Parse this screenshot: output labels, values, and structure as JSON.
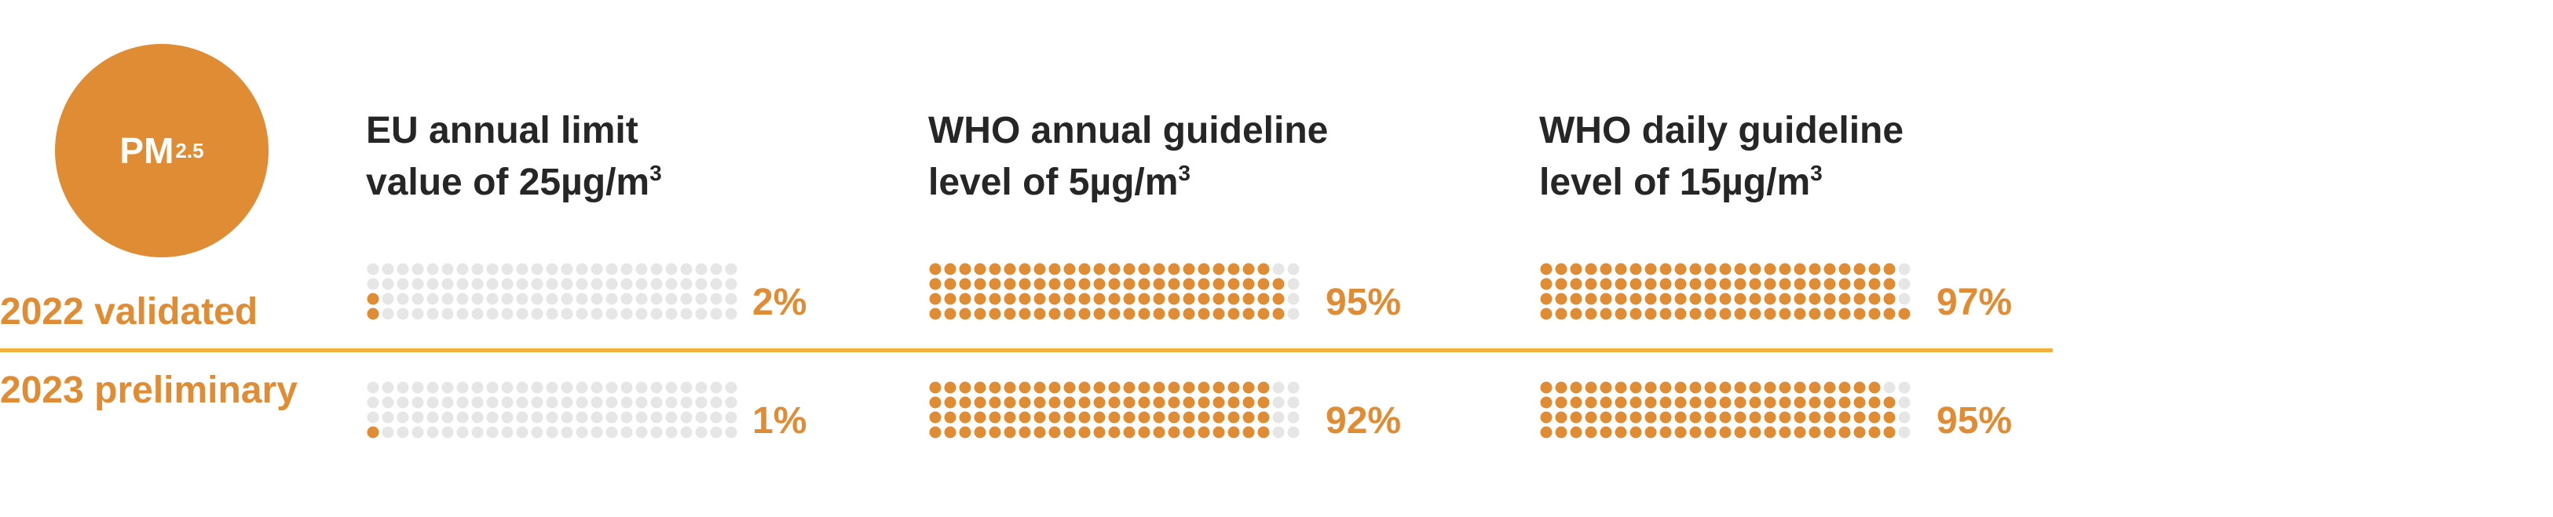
{
  "colors": {
    "accent": "#e08c35",
    "divider": "#f4b03c",
    "empty_dot": "#e6e6e6",
    "heading": "#262626"
  },
  "badge": {
    "main": "PM",
    "sub": "2.5"
  },
  "columns": [
    {
      "line1": "EU annual limit",
      "line2": "value of 25µg/m",
      "sup": "3"
    },
    {
      "line1": "WHO annual guideline",
      "line2": "level of 5µg/m",
      "sup": "3"
    },
    {
      "line1": "WHO daily guideline",
      "line2": "level of 15µg/m",
      "sup": "3"
    }
  ],
  "rows": [
    {
      "label": "2022 validated"
    },
    {
      "label": "2023 preliminary"
    }
  ],
  "chart_data": {
    "type": "waffle",
    "units_per_chart": 100,
    "series_rows": [
      "2022 validated",
      "2023 preliminary"
    ],
    "columns": [
      "EU annual limit value of 25µg/m³",
      "WHO annual guideline level of 5µg/m³",
      "WHO daily guideline level of 15µg/m³"
    ],
    "values": [
      [
        2,
        95,
        97
      ],
      [
        1,
        92,
        95
      ]
    ],
    "labels": [
      [
        "2%",
        "95%",
        "97%"
      ],
      [
        "1%",
        "92%",
        "95%"
      ]
    ]
  }
}
